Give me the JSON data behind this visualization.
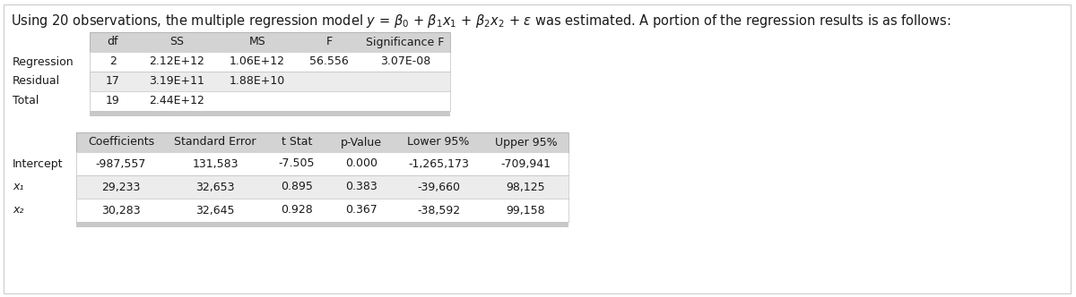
{
  "title_plain": "Using 20 observations, the multiple regression model ",
  "title_math": "$y = \\beta_0 + \\beta_1x_1 + \\beta_2x_2 + \\varepsilon$",
  "title_end": " was estimated. A portion of the regression results is as follows:",
  "anova_col_labels": [
    "",
    "df",
    "SS",
    "MS",
    "F",
    "Significance F"
  ],
  "anova_rows": [
    [
      "Regression",
      "2",
      "2.12E+12",
      "1.06E+12",
      "56.556",
      "3.07E-08"
    ],
    [
      "Residual",
      "17",
      "3.19E+11",
      "1.88E+10",
      "",
      ""
    ],
    [
      "Total",
      "19",
      "2.44E+12",
      "",
      "",
      ""
    ]
  ],
  "coef_col_labels": [
    "",
    "Coefficients",
    "Standard Error",
    "t Stat",
    "p-Value",
    "Lower 95%",
    "Upper 95%"
  ],
  "coef_row_labels_italic": [
    false,
    true,
    true
  ],
  "coef_rows": [
    [
      "Intercept",
      "-987,557",
      "131,583",
      "-7.505",
      "0.000",
      "-1,265,173",
      "-709,941"
    ],
    [
      "x₁",
      "29,233",
      "32,653",
      "0.895",
      "0.383",
      "-39,660",
      "98,125"
    ],
    [
      "x₂",
      "30,283",
      "32,645",
      "0.928",
      "0.367",
      "-38,592",
      "99,158"
    ]
  ],
  "header_bg": "#d3d3d3",
  "row_bg_odd": "#ffffff",
  "row_bg_even": "#ececec",
  "border_color": "#b0b0b0",
  "bottom_bar_color": "#c8c8c8",
  "text_color": "#1a1a1a",
  "bg_color": "#ffffff",
  "font_size": 9.0,
  "title_font_size": 10.5
}
